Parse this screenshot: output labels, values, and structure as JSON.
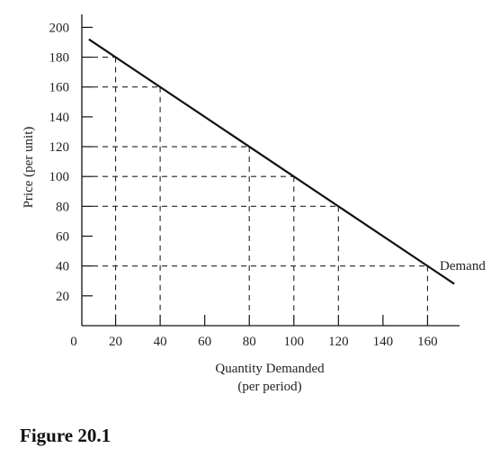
{
  "figure_label": "Figure 20.1",
  "chart_data": {
    "type": "line",
    "title": "",
    "xlabel": "Quantity Demanded",
    "xlabel_sub": "(per period)",
    "ylabel": "Price (per unit)",
    "origin_label": "0",
    "xlim": [
      0,
      180
    ],
    "ylim": [
      0,
      200
    ],
    "x_ticks": [
      20,
      40,
      60,
      80,
      100,
      120,
      140,
      160
    ],
    "y_ticks": [
      20,
      40,
      60,
      80,
      100,
      120,
      140,
      160,
      180,
      200
    ],
    "grid": false,
    "series": [
      {
        "name": "Demand",
        "x": [
          8,
          162,
          172
        ],
        "y": [
          192,
          38,
          28
        ]
      }
    ],
    "reference_points": [
      {
        "x": 20,
        "y": 180
      },
      {
        "x": 40,
        "y": 160
      },
      {
        "x": 80,
        "y": 120
      },
      {
        "x": 100,
        "y": 100
      },
      {
        "x": 120,
        "y": 80
      },
      {
        "x": 160,
        "y": 40
      }
    ],
    "annotations": [
      {
        "text": "Demand",
        "anchor": "end-of-curve"
      }
    ]
  }
}
